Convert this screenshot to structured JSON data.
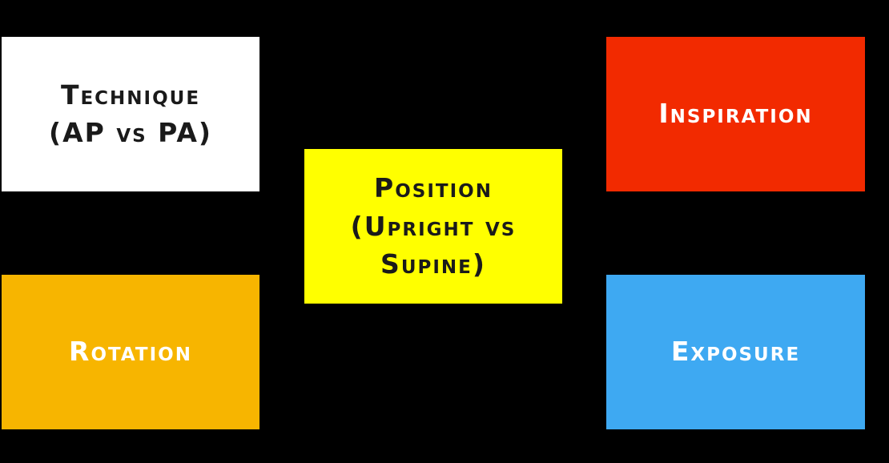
{
  "boxes": {
    "technique": {
      "lines": [
        "Technique",
        "(AP vs PA)"
      ],
      "color": "#FFFFFF"
    },
    "rotation": {
      "lines": [
        "Rotation"
      ],
      "color": "#F7B500"
    },
    "position": {
      "lines": [
        "Position",
        "(Upright vs",
        "Supine)"
      ],
      "color": "#FFFF00"
    },
    "inspiration": {
      "lines": [
        "Inspiration"
      ],
      "color": "#F22A00"
    },
    "exposure": {
      "lines": [
        "Exposure"
      ],
      "color": "#3EA9F2"
    }
  },
  "background_color": "#000000"
}
